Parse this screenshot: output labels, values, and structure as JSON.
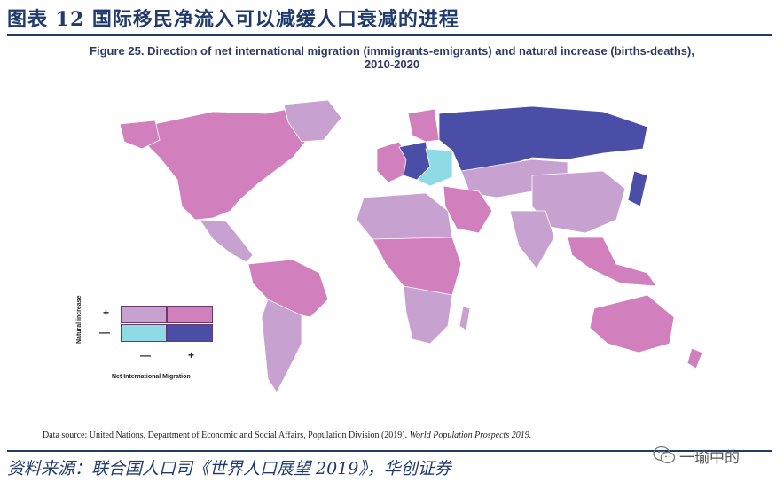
{
  "header": {
    "title": "图表 12  国际移民净流入可以减缓人口衰减的进程"
  },
  "figure": {
    "title": "Figure 25. Direction of net international migration (immigrants-emigrants) and natural increase (births-deaths),",
    "title_line2": "2010-2020"
  },
  "legend": {
    "y_label": "Natural increase",
    "x_label": "Net International Migration",
    "y_plus": "+",
    "y_minus": "—",
    "x_minus": "—",
    "x_plus": "+",
    "colors": {
      "natural_plus_migration_minus": "#c7a2d1",
      "natural_plus_migration_plus": "#d27fbe",
      "natural_minus_migration_minus": "#8edbe6",
      "natural_minus_migration_plus": "#4b4ea6"
    }
  },
  "source_note": {
    "text": "Data source: United Nations, Department of Economic and Social Affairs, Population Division (2019). ",
    "italic": "World Population Prospects 2019."
  },
  "footer": {
    "text": "资料来源：联合国人口司《世界人口展望 2019》，华创证券"
  },
  "watermark": {
    "text": "一瑜中的",
    "icon": "wechat-icon"
  }
}
